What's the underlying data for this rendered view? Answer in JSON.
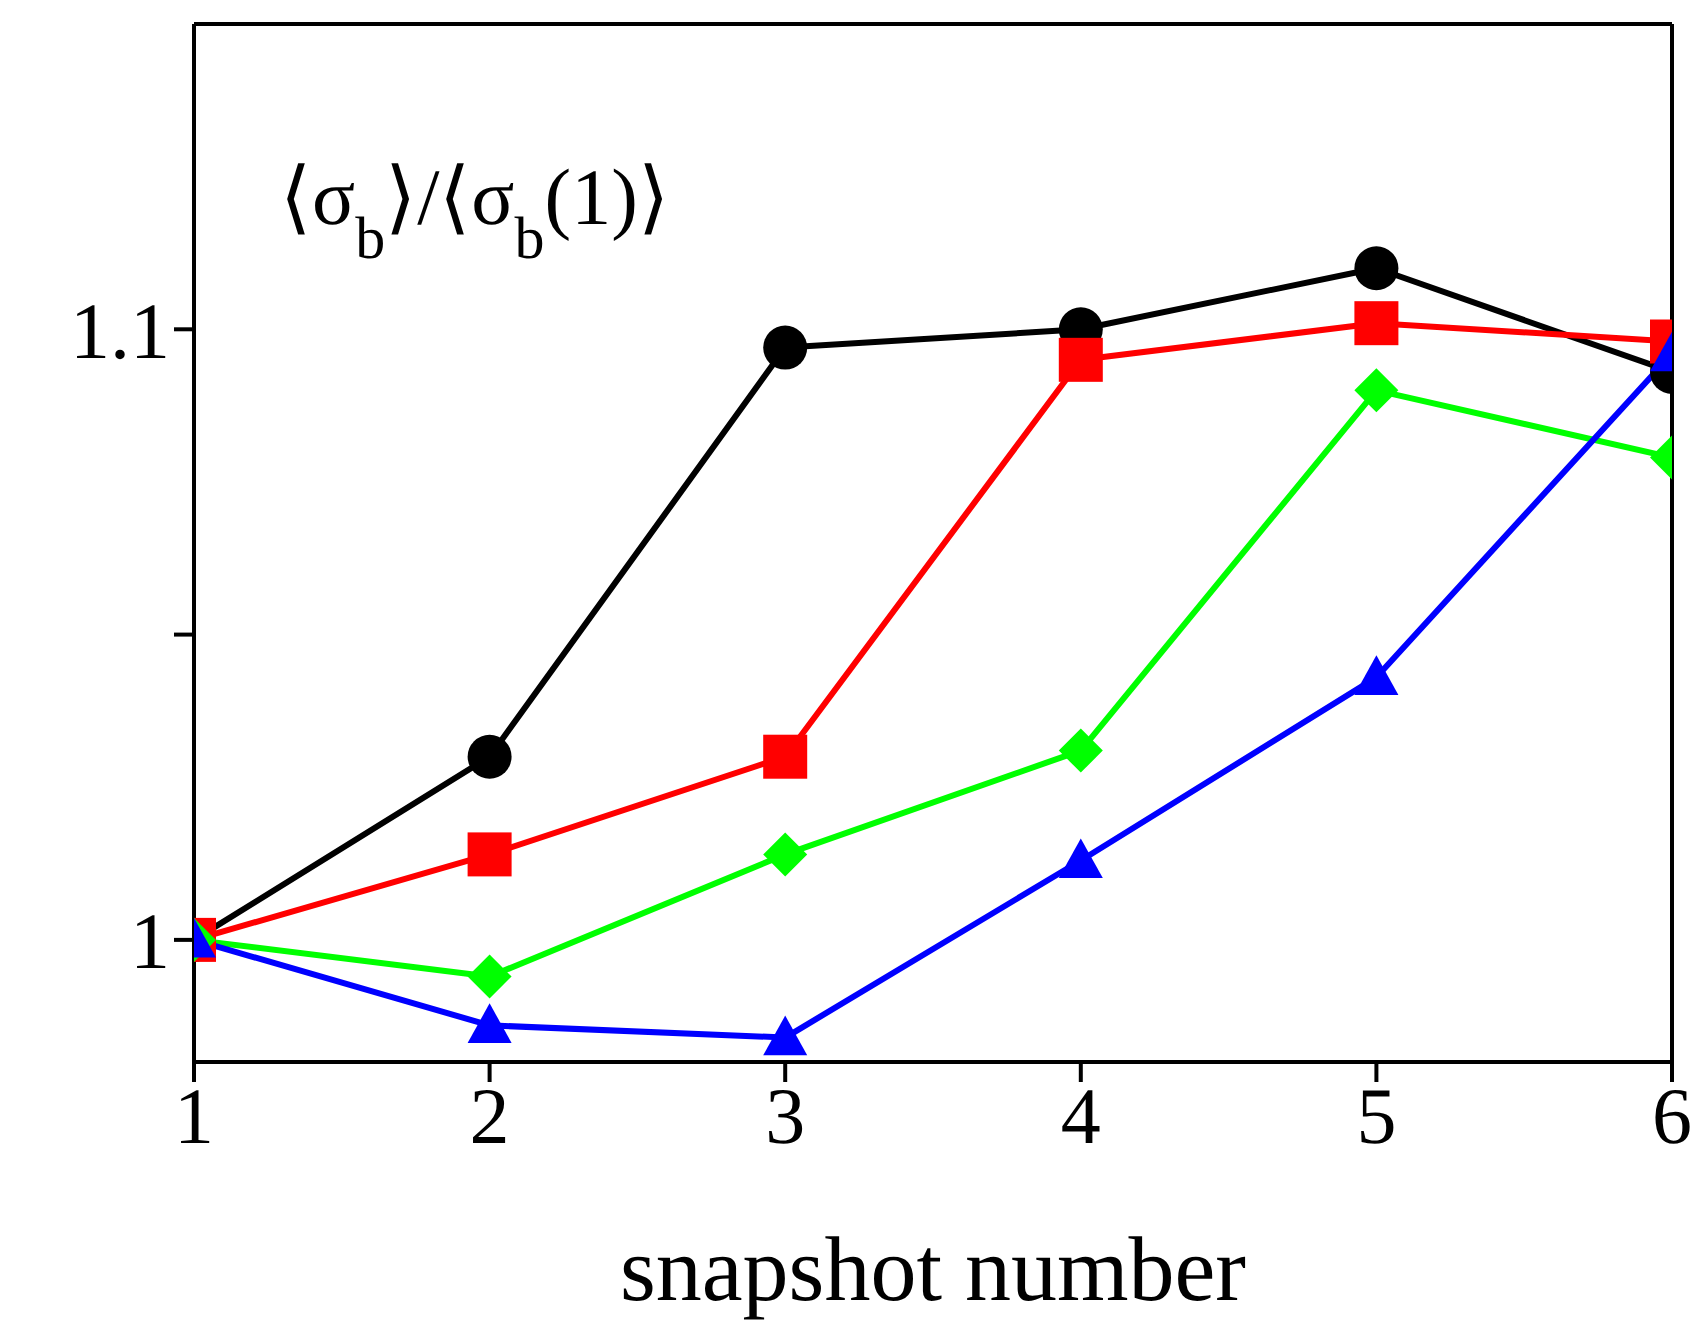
{
  "chart_data": {
    "type": "line",
    "xlabel": "snapshot number",
    "x": [
      1,
      2,
      3,
      4,
      5,
      6
    ],
    "xlim": [
      1,
      6
    ],
    "xticks": [
      1,
      2,
      3,
      4,
      5,
      6
    ],
    "ylim": [
      0.98,
      1.15
    ],
    "yticks": [
      1,
      {
        "value": 1.05,
        "label": null
      },
      1.1
    ],
    "line_style": "solid",
    "annotations": [
      "⟨σ$_{b}$⟩/⟨σ$_{b}$(1)⟩"
    ],
    "series": [
      {
        "color": "#000000",
        "marker": "circle",
        "values": [
          1.0,
          1.03,
          1.097,
          1.1,
          1.11,
          1.093
        ]
      },
      {
        "color": "#ff0000",
        "marker": "square",
        "values": [
          1.0,
          1.014,
          1.03,
          1.095,
          1.101,
          1.098
        ]
      },
      {
        "color": "#00ff00",
        "marker": "diamond",
        "values": [
          1.0,
          0.994,
          1.014,
          1.031,
          1.09,
          1.079
        ]
      },
      {
        "color": "#0000ff",
        "marker": "triangle",
        "values": [
          1.0,
          0.986,
          0.984,
          1.013,
          1.043,
          1.096
        ]
      }
    ]
  }
}
